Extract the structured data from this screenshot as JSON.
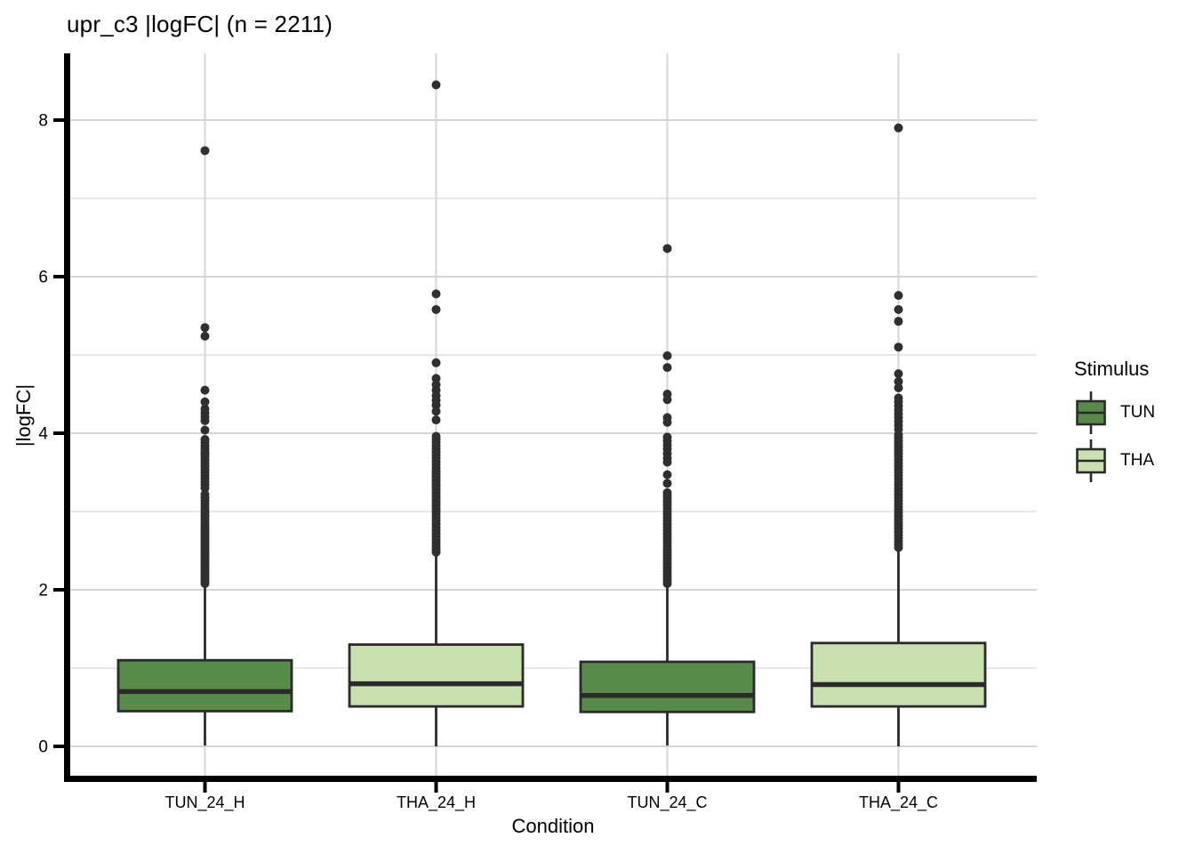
{
  "chart_data": {
    "type": "boxplot",
    "title": "upr_c3 |logFC| (n = 2211)",
    "xlabel": "Condition",
    "ylabel": "|logFC|",
    "n": 2211,
    "ylim": [
      -0.43,
      8.87
    ],
    "y_ticks": [
      0,
      2,
      4,
      6,
      8
    ],
    "y_tick_labels": [
      "0",
      "2",
      "4",
      "6",
      "8"
    ],
    "y_minor": [
      1,
      3,
      5,
      7
    ],
    "categories": [
      "TUN_24_H",
      "THA_24_H",
      "TUN_24_C",
      "THA_24_C"
    ],
    "legend": {
      "title": "Stimulus",
      "entries": [
        {
          "label": "TUN",
          "color": "#588b4a"
        },
        {
          "label": "THA",
          "color": "#c8e1ae"
        }
      ]
    },
    "colors": {
      "box_line": "#2a2a2a",
      "outlier": "#2f2f2f",
      "grid_major": "#d4d4d4",
      "grid_minor": "#e4e4e4",
      "axis": "#000000"
    },
    "boxes": [
      {
        "category": "TUN_24_H",
        "stimulus": "TUN",
        "q1": 0.45,
        "median": 0.7,
        "q3": 1.1,
        "whisker_low": 0.01,
        "whisker_high": 2.07,
        "outliers": [
          7.61,
          5.35,
          5.24,
          4.55,
          4.4,
          4.31,
          4.26,
          4.21,
          4.16,
          4.04,
          3.92,
          3.88,
          3.84,
          3.8,
          3.76,
          3.73,
          3.7,
          3.66,
          3.62,
          3.58,
          3.54,
          3.5,
          3.46,
          3.42,
          3.38,
          3.34,
          3.3,
          3.22,
          3.18,
          3.14,
          3.1,
          3.06,
          3.02,
          2.98,
          2.94,
          2.9,
          2.86,
          2.82,
          2.79,
          2.76,
          2.73,
          2.7,
          2.67,
          2.64,
          2.61,
          2.58,
          2.55,
          2.52,
          2.49,
          2.46,
          2.43,
          2.4,
          2.37,
          2.34,
          2.31,
          2.28,
          2.25,
          2.22,
          2.19,
          2.16,
          2.13,
          2.1,
          2.08
        ]
      },
      {
        "category": "THA_24_H",
        "stimulus": "THA",
        "q1": 0.51,
        "median": 0.8,
        "q3": 1.3,
        "whisker_low": 0.0,
        "whisker_high": 2.48,
        "outliers": [
          8.45,
          5.78,
          5.58,
          4.9,
          4.7,
          4.62,
          4.55,
          4.48,
          4.42,
          4.36,
          4.28,
          4.17,
          3.96,
          3.92,
          3.88,
          3.84,
          3.8,
          3.76,
          3.72,
          3.68,
          3.64,
          3.6,
          3.56,
          3.52,
          3.48,
          3.44,
          3.4,
          3.36,
          3.32,
          3.28,
          3.24,
          3.2,
          3.16,
          3.12,
          3.08,
          3.04,
          3.0,
          2.96,
          2.92,
          2.88,
          2.84,
          2.8,
          2.76,
          2.72,
          2.68,
          2.64,
          2.6,
          2.56,
          2.52,
          2.48
        ]
      },
      {
        "category": "TUN_24_C",
        "stimulus": "TUN",
        "q1": 0.44,
        "median": 0.65,
        "q3": 1.08,
        "whisker_low": 0.01,
        "whisker_high": 2.07,
        "outliers": [
          6.36,
          4.99,
          4.84,
          4.5,
          4.43,
          4.2,
          4.14,
          3.95,
          3.9,
          3.85,
          3.8,
          3.74,
          3.68,
          3.63,
          3.47,
          3.36,
          3.24,
          3.2,
          3.16,
          3.12,
          3.08,
          3.04,
          3.0,
          2.96,
          2.92,
          2.88,
          2.84,
          2.8,
          2.76,
          2.72,
          2.68,
          2.64,
          2.6,
          2.56,
          2.52,
          2.48,
          2.44,
          2.4,
          2.36,
          2.32,
          2.28,
          2.24,
          2.2,
          2.16,
          2.12,
          2.08
        ]
      },
      {
        "category": "THA_24_C",
        "stimulus": "THA",
        "q1": 0.51,
        "median": 0.79,
        "q3": 1.32,
        "whisker_low": 0.0,
        "whisker_high": 2.52,
        "outliers": [
          7.9,
          5.76,
          5.58,
          5.43,
          5.1,
          4.76,
          4.66,
          4.58,
          4.45,
          4.4,
          4.35,
          4.3,
          4.25,
          4.2,
          4.15,
          4.1,
          4.05,
          3.98,
          3.94,
          3.9,
          3.86,
          3.82,
          3.78,
          3.74,
          3.7,
          3.66,
          3.62,
          3.58,
          3.54,
          3.5,
          3.46,
          3.42,
          3.38,
          3.34,
          3.3,
          3.26,
          3.22,
          3.18,
          3.14,
          3.1,
          3.06,
          3.02,
          2.98,
          2.94,
          2.9,
          2.86,
          2.82,
          2.78,
          2.74,
          2.7,
          2.66,
          2.62,
          2.58,
          2.54
        ]
      }
    ]
  }
}
